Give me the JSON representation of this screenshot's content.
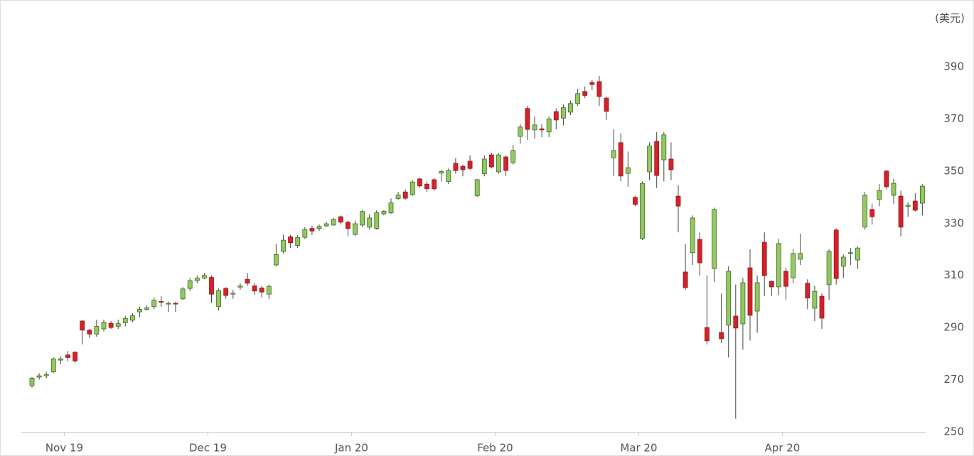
{
  "chart_data": {
    "type": "candlestick",
    "y_label": "(美元)",
    "categories": [
      null,
      null,
      null,
      null,
      null,
      "Nov 19",
      null,
      null,
      null,
      null,
      null,
      null,
      null,
      null,
      null,
      null,
      null,
      null,
      null,
      null,
      null,
      null,
      null,
      null,
      null,
      "Dec 19",
      null,
      null,
      null,
      null,
      null,
      null,
      null,
      null,
      null,
      null,
      null,
      null,
      null,
      null,
      null,
      null,
      null,
      null,
      null,
      "Jan 20",
      null,
      null,
      null,
      null,
      null,
      null,
      null,
      null,
      null,
      null,
      null,
      null,
      null,
      null,
      null,
      null,
      null,
      null,
      null,
      "Feb 20",
      null,
      null,
      null,
      null,
      null,
      null,
      null,
      null,
      null,
      null,
      null,
      null,
      null,
      null,
      null,
      null,
      null,
      null,
      null,
      "Mar 20",
      null,
      null,
      null,
      null,
      null,
      null,
      null,
      null,
      null,
      null,
      null,
      null,
      null,
      null,
      null,
      null,
      null,
      null,
      null,
      "Apr 20",
      null,
      null,
      null,
      null,
      null,
      null,
      null,
      null,
      null,
      null,
      null,
      null,
      null,
      null,
      null,
      null,
      null,
      null,
      null
    ],
    "open": [
      267.7,
      271,
      271.5,
      273,
      277.5,
      279.5,
      280.5,
      292.5,
      289,
      287.5,
      289.5,
      291.6,
      290.5,
      291.8,
      292.8,
      296,
      297,
      298,
      300,
      299,
      299.3,
      301,
      305,
      308,
      309,
      309.2,
      298,
      305,
      302.8,
      305.5,
      308.5,
      306,
      305.2,
      302.8,
      314,
      319.2,
      324.8,
      321.5,
      324.6,
      328,
      328,
      329,
      329.3,
      332.5,
      330.4,
      325.7,
      329.3,
      328.5,
      328,
      333.6,
      334,
      339.5,
      342,
      341,
      347,
      345,
      346.7,
      349.2,
      346,
      353,
      351.8,
      353.8,
      340.6,
      349,
      356.2,
      349.7,
      355.4,
      353.2,
      363.3,
      374,
      365.8,
      366.2,
      365,
      372.8,
      370.3,
      372.6,
      375.9,
      380.5,
      384,
      384.3,
      378,
      355.1,
      360.9,
      349.1,
      339.9,
      324.1,
      349.7,
      361.4,
      354.3,
      354.6,
      340.4,
      311.3,
      318.7,
      323.8,
      290,
      312.6,
      288.1,
      290.9,
      294.4,
      291.4,
      312.9,
      296.3,
      322.7,
      307.7,
      305.6,
      311.6,
      309.1,
      316.2,
      307,
      297.4,
      302,
      306.4,
      327.4,
      313.5,
      318.4,
      315.9,
      328.5,
      335.3,
      339.1,
      350,
      340.7,
      340.4,
      336.5,
      338.5,
      337.7
    ],
    "high": [
      271,
      272.5,
      273,
      278.5,
      279,
      281,
      281,
      293,
      289.5,
      293,
      293,
      292.5,
      293,
      294.5,
      295.5,
      298,
      298.5,
      301.5,
      302,
      300,
      299.8,
      305.5,
      309,
      310,
      311,
      310,
      305,
      305.5,
      304.5,
      307,
      311,
      307,
      306,
      306.5,
      322,
      325.5,
      325.5,
      325.5,
      328.5,
      329,
      329.5,
      330.5,
      332,
      333,
      331,
      331,
      335,
      333.5,
      335,
      335,
      339.5,
      342,
      343,
      346.5,
      347.5,
      346,
      347.5,
      350.5,
      351,
      355,
      352.5,
      356,
      347,
      356,
      357,
      357,
      356,
      360,
      368,
      375,
      371,
      368,
      371,
      374,
      375.5,
      377,
      381.5,
      382.5,
      385,
      386.5,
      378.5,
      366,
      364.5,
      357.5,
      340.5,
      346,
      361,
      365,
      365,
      361,
      344.5,
      322,
      333,
      326.5,
      310,
      336,
      303,
      313.5,
      306.5,
      309,
      320,
      310,
      326.5,
      308,
      324,
      313,
      320,
      326,
      308.5,
      306,
      303,
      320,
      328,
      318,
      320.5,
      321,
      342,
      337.5,
      345,
      350.5,
      347,
      342.5,
      338,
      341.5,
      345
    ],
    "low": [
      267,
      270,
      270.5,
      272.5,
      276,
      277,
      276.5,
      283.5,
      286,
      286.5,
      288.5,
      289.5,
      289.5,
      290.5,
      292,
      294,
      296.5,
      297,
      298,
      296,
      296,
      300.5,
      304,
      307,
      308.5,
      299.5,
      296.5,
      301,
      301,
      304.5,
      306,
      302.5,
      301.5,
      301,
      313.5,
      318.5,
      320.5,
      320.5,
      324,
      325.5,
      327,
      328.5,
      329,
      329.5,
      325,
      325,
      328.5,
      327.5,
      327.5,
      333,
      333.5,
      339,
      339,
      340.5,
      343.5,
      342,
      342.5,
      346,
      345,
      349,
      348,
      350.5,
      340,
      348,
      351,
      349,
      348,
      352.5,
      360.5,
      362,
      362.5,
      363,
      363,
      366,
      367.5,
      371.5,
      375,
      378,
      381,
      375,
      369.5,
      348,
      346,
      344,
      336.5,
      323.5,
      346.5,
      343.5,
      346,
      346.5,
      326.5,
      304.5,
      314,
      310,
      283.5,
      307.5,
      284,
      278.5,
      255,
      281.5,
      285,
      288,
      302,
      302,
      302.5,
      300.5,
      307,
      314,
      297,
      292.5,
      289.5,
      300.5,
      306.5,
      309,
      314,
      312.5,
      327.5,
      329.5,
      336.5,
      343,
      337.5,
      325,
      332.5,
      334.5,
      333
    ],
    "close": [
      270.6,
      271.5,
      272,
      278,
      278,
      278.5,
      277.2,
      289,
      287.5,
      290.5,
      292,
      290,
      291.5,
      293.5,
      294.5,
      297,
      297.6,
      300.5,
      299.8,
      299.3,
      299,
      304.8,
      308,
      309,
      310,
      302.8,
      304.2,
      302.3,
      303.2,
      306,
      307,
      304,
      303.6,
      305.8,
      318,
      323.5,
      322.5,
      324.5,
      327.6,
      327,
      328.8,
      329.8,
      331.5,
      330.4,
      328,
      329.8,
      334.5,
      332,
      334,
      334.6,
      337.8,
      340.8,
      339.6,
      345.8,
      344.3,
      343.2,
      343.2,
      349.8,
      350.2,
      350.2,
      350.5,
      351,
      346.7,
      354.6,
      351.6,
      356.2,
      350.2,
      357.9,
      366.9,
      366,
      367.7,
      365.8,
      370,
      369.6,
      374.3,
      375.9,
      379.7,
      379,
      383.2,
      378.6,
      372.9,
      357.9,
      348.1,
      351.3,
      337.2,
      345.3,
      359.6,
      348.3,
      363.9,
      350.5,
      336.6,
      305.3,
      332,
      314.8,
      284.9,
      335.3,
      285.7,
      311.6,
      289.8,
      307.2,
      294.7,
      307.2,
      309.9,
      305.6,
      322.2,
      305.8,
      318.4,
      318.4,
      301.3,
      303.9,
      293.6,
      319.2,
      308.8,
      317,
      318.7,
      320.5,
      340.7,
      332.5,
      342.6,
      344,
      345.3,
      328.5,
      336.9,
      335,
      344.2
    ],
    "up_color": "#93c862",
    "down_color": "#d2232a",
    "ylim": [
      250,
      390
    ],
    "yticks": [
      250,
      270,
      290,
      310,
      330,
      350,
      370,
      390
    ],
    "grid": false
  }
}
